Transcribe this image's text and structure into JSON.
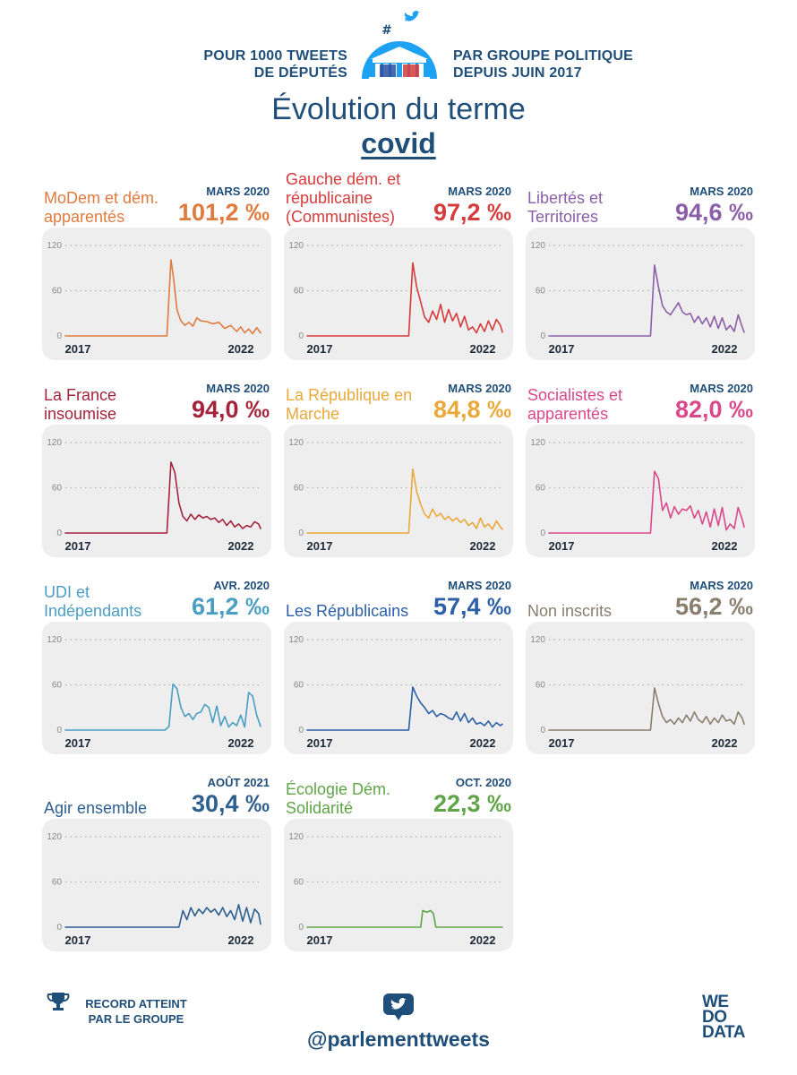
{
  "header": {
    "left_line1": "POUR 1000 TWEETS",
    "left_line2": "DE DÉPUTÉS",
    "right_line1": "PAR GROUPE POLITIQUE",
    "right_line2": "DEPUIS JUIN 2017",
    "title": "Évolution du terme",
    "term": "covid"
  },
  "footer": {
    "record_line1": "RECORD ATTEINT",
    "record_line2": "PAR LE GROUPE",
    "handle": "@parlementtweets",
    "brand_line1": "WE",
    "brand_line2": "DO",
    "brand_line3": "DATA"
  },
  "chart_data": [
    {
      "type": "line",
      "name": "MoDem et dém. apparentés",
      "color": "#e07b3f",
      "record_date": "MARS 2020",
      "record_value": "101,2 ‰",
      "xlabels": [
        "2017",
        "2022"
      ],
      "yticks": [
        0,
        60,
        120
      ],
      "ylim": [
        0,
        120
      ],
      "x_range": [
        2017.45,
        2022.35
      ],
      "x": [
        2017.45,
        2020.0,
        2020.1,
        2020.17,
        2020.25,
        2020.35,
        2020.45,
        2020.55,
        2020.65,
        2020.75,
        2020.85,
        2021.0,
        2021.15,
        2021.3,
        2021.45,
        2021.6,
        2021.75,
        2021.85,
        2021.95,
        2022.05,
        2022.15,
        2022.25,
        2022.35
      ],
      "y": [
        0,
        0,
        101,
        75,
        35,
        20,
        14,
        18,
        13,
        24,
        20,
        19,
        16,
        18,
        10,
        14,
        6,
        12,
        4,
        9,
        3,
        11,
        4
      ]
    },
    {
      "type": "line",
      "name": "Gauche dém. et républicaine (Communistes)",
      "color": "#d63b3b",
      "record_date": "MARS 2020",
      "record_value": "97,2 ‰",
      "xlabels": [
        "2017",
        "2022"
      ],
      "yticks": [
        0,
        60,
        120
      ],
      "ylim": [
        0,
        120
      ],
      "x_range": [
        2017.45,
        2022.35
      ],
      "x": [
        2017.45,
        2020.0,
        2020.1,
        2020.2,
        2020.3,
        2020.4,
        2020.5,
        2020.6,
        2020.7,
        2020.8,
        2020.9,
        2021.0,
        2021.1,
        2021.2,
        2021.3,
        2021.4,
        2021.5,
        2021.6,
        2021.7,
        2021.8,
        2021.9,
        2022.0,
        2022.1,
        2022.2,
        2022.3,
        2022.35
      ],
      "y": [
        0,
        0,
        97,
        65,
        45,
        25,
        18,
        33,
        22,
        42,
        18,
        35,
        20,
        30,
        12,
        26,
        8,
        12,
        4,
        16,
        6,
        20,
        8,
        22,
        14,
        5
      ]
    },
    {
      "type": "line",
      "name": "Libertés et Territoires",
      "color": "#8b5ea8",
      "record_date": "MARS 2020",
      "record_value": "94,6 ‰",
      "xlabels": [
        "2017",
        "2022"
      ],
      "yticks": [
        0,
        60,
        120
      ],
      "ylim": [
        0,
        120
      ],
      "x_range": [
        2017.45,
        2022.35
      ],
      "x": [
        2017.45,
        2020.0,
        2020.1,
        2020.2,
        2020.3,
        2020.4,
        2020.5,
        2020.6,
        2020.7,
        2020.8,
        2020.9,
        2021.0,
        2021.1,
        2021.2,
        2021.3,
        2021.4,
        2021.5,
        2021.6,
        2021.7,
        2021.8,
        2021.9,
        2022.0,
        2022.1,
        2022.2,
        2022.3,
        2022.35
      ],
      "y": [
        0,
        0,
        94,
        65,
        40,
        32,
        28,
        36,
        44,
        32,
        28,
        30,
        18,
        26,
        16,
        24,
        12,
        26,
        10,
        24,
        8,
        14,
        6,
        28,
        12,
        5
      ]
    },
    {
      "type": "line",
      "name": "La France insoumise",
      "color": "#a3243b",
      "record_date": "MARS 2020",
      "record_value": "94,0 ‰",
      "xlabels": [
        "2017",
        "2022"
      ],
      "yticks": [
        0,
        60,
        120
      ],
      "ylim": [
        0,
        120
      ],
      "x_range": [
        2017.45,
        2022.35
      ],
      "x": [
        2017.45,
        2020.0,
        2020.1,
        2020.2,
        2020.3,
        2020.4,
        2020.5,
        2020.6,
        2020.7,
        2020.8,
        2020.9,
        2021.0,
        2021.1,
        2021.2,
        2021.3,
        2021.4,
        2021.5,
        2021.6,
        2021.7,
        2021.8,
        2021.9,
        2022.0,
        2022.1,
        2022.2,
        2022.3,
        2022.35
      ],
      "y": [
        0,
        0,
        94,
        80,
        40,
        22,
        16,
        25,
        18,
        24,
        20,
        22,
        18,
        20,
        14,
        18,
        10,
        16,
        8,
        12,
        6,
        10,
        8,
        15,
        12,
        6
      ]
    },
    {
      "type": "line",
      "name": "La République en Marche",
      "color": "#e9a83a",
      "record_date": "MARS 2020",
      "record_value": "84,8 ‰",
      "xlabels": [
        "2017",
        "2022"
      ],
      "yticks": [
        0,
        60,
        120
      ],
      "ylim": [
        0,
        120
      ],
      "x_range": [
        2017.45,
        2022.35
      ],
      "x": [
        2017.45,
        2020.0,
        2020.1,
        2020.2,
        2020.3,
        2020.4,
        2020.5,
        2020.6,
        2020.7,
        2020.8,
        2020.9,
        2021.0,
        2021.1,
        2021.2,
        2021.3,
        2021.4,
        2021.5,
        2021.6,
        2021.7,
        2021.8,
        2021.9,
        2022.0,
        2022.1,
        2022.2,
        2022.3,
        2022.35
      ],
      "y": [
        0,
        0,
        85,
        55,
        38,
        25,
        20,
        32,
        22,
        26,
        18,
        22,
        16,
        20,
        14,
        18,
        10,
        14,
        6,
        20,
        8,
        12,
        5,
        16,
        8,
        5
      ]
    },
    {
      "type": "line",
      "name": "Socialistes et apparentés",
      "color": "#d9488a",
      "record_date": "MARS 2020",
      "record_value": "82,0 ‰",
      "xlabels": [
        "2017",
        "2022"
      ],
      "yticks": [
        0,
        60,
        120
      ],
      "ylim": [
        0,
        120
      ],
      "x_range": [
        2017.45,
        2022.35
      ],
      "x": [
        2017.45,
        2020.0,
        2020.1,
        2020.2,
        2020.3,
        2020.4,
        2020.5,
        2020.6,
        2020.7,
        2020.8,
        2020.9,
        2021.0,
        2021.1,
        2021.2,
        2021.3,
        2021.4,
        2021.5,
        2021.6,
        2021.7,
        2021.8,
        2021.9,
        2022.0,
        2022.1,
        2022.2,
        2022.3,
        2022.35
      ],
      "y": [
        0,
        0,
        82,
        72,
        30,
        40,
        20,
        35,
        25,
        32,
        30,
        36,
        20,
        30,
        12,
        28,
        8,
        32,
        10,
        34,
        4,
        12,
        6,
        34,
        18,
        8
      ]
    },
    {
      "type": "line",
      "name": "UDI et Indépendants",
      "color": "#4a9ec4",
      "record_date": "AVR. 2020",
      "record_value": "61,2 ‰",
      "xlabels": [
        "2017",
        "2022"
      ],
      "yticks": [
        0,
        60,
        120
      ],
      "ylim": [
        0,
        120
      ],
      "x_range": [
        2017.45,
        2022.35
      ],
      "x": [
        2017.45,
        2019.95,
        2020.05,
        2020.15,
        2020.25,
        2020.35,
        2020.45,
        2020.55,
        2020.65,
        2020.75,
        2020.85,
        2020.95,
        2021.05,
        2021.15,
        2021.25,
        2021.35,
        2021.45,
        2021.55,
        2021.65,
        2021.75,
        2021.85,
        2021.95,
        2022.05,
        2022.15,
        2022.25,
        2022.35
      ],
      "y": [
        0,
        0,
        5,
        61,
        55,
        30,
        18,
        22,
        14,
        22,
        24,
        34,
        30,
        10,
        32,
        6,
        18,
        4,
        10,
        6,
        20,
        4,
        50,
        45,
        20,
        5
      ]
    },
    {
      "type": "line",
      "name": "Les Républicains",
      "color": "#2b5fa8",
      "record_date": "MARS 2020",
      "record_value": "57,4 ‰",
      "xlabels": [
        "2017",
        "2022"
      ],
      "yticks": [
        0,
        60,
        120
      ],
      "ylim": [
        0,
        120
      ],
      "x_range": [
        2017.45,
        2022.35
      ],
      "x": [
        2017.45,
        2020.0,
        2020.1,
        2020.2,
        2020.3,
        2020.4,
        2020.5,
        2020.6,
        2020.7,
        2020.8,
        2020.9,
        2021.0,
        2021.1,
        2021.2,
        2021.3,
        2021.4,
        2021.5,
        2021.6,
        2021.7,
        2021.8,
        2021.9,
        2022.0,
        2022.1,
        2022.2,
        2022.3,
        2022.35
      ],
      "y": [
        0,
        0,
        57,
        45,
        36,
        30,
        22,
        26,
        18,
        22,
        20,
        16,
        14,
        24,
        12,
        22,
        10,
        16,
        8,
        10,
        6,
        12,
        4,
        10,
        6,
        8
      ]
    },
    {
      "type": "line",
      "name": "Non inscrits",
      "color": "#8a7e6e",
      "record_date": "MARS 2020",
      "record_value": "56,2 ‰",
      "xlabels": [
        "2017",
        "2022"
      ],
      "yticks": [
        0,
        60,
        120
      ],
      "ylim": [
        0,
        120
      ],
      "x_range": [
        2017.45,
        2022.35
      ],
      "x": [
        2017.45,
        2020.0,
        2020.1,
        2020.2,
        2020.3,
        2020.4,
        2020.5,
        2020.6,
        2020.7,
        2020.8,
        2020.9,
        2021.0,
        2021.1,
        2021.2,
        2021.3,
        2021.4,
        2021.5,
        2021.6,
        2021.7,
        2021.8,
        2021.9,
        2022.0,
        2022.1,
        2022.2,
        2022.3,
        2022.35
      ],
      "y": [
        0,
        0,
        56,
        35,
        18,
        10,
        14,
        8,
        16,
        10,
        20,
        12,
        24,
        14,
        10,
        18,
        8,
        16,
        10,
        20,
        12,
        14,
        8,
        24,
        16,
        8
      ]
    },
    {
      "type": "line",
      "name": "Agir ensemble",
      "color": "#2d5f8f",
      "record_date": "AOÛT 2021",
      "record_value": "30,4 ‰",
      "xlabels": [
        "2017",
        "2022"
      ],
      "yticks": [
        0,
        60,
        120
      ],
      "ylim": [
        0,
        120
      ],
      "x_range": [
        2017.45,
        2022.35
      ],
      "x": [
        2017.45,
        2020.3,
        2020.4,
        2020.5,
        2020.6,
        2020.7,
        2020.8,
        2020.9,
        2021.0,
        2021.1,
        2021.2,
        2021.3,
        2021.4,
        2021.5,
        2021.6,
        2021.7,
        2021.8,
        2021.9,
        2022.0,
        2022.1,
        2022.2,
        2022.3,
        2022.35
      ],
      "y": [
        0,
        0,
        22,
        10,
        26,
        15,
        24,
        18,
        26,
        20,
        24,
        16,
        26,
        14,
        22,
        10,
        30,
        8,
        26,
        6,
        24,
        18,
        4
      ]
    },
    {
      "type": "line",
      "name": "Écologie Dém. Solidarité",
      "color": "#5fa548",
      "record_date": "OCT. 2020",
      "record_value": "22,3 ‰",
      "xlabels": [
        "2017",
        "2022"
      ],
      "yticks": [
        0,
        60,
        120
      ],
      "ylim": [
        0,
        120
      ],
      "x_range": [
        2017.45,
        2022.35
      ],
      "x": [
        2017.45,
        2020.3,
        2020.35,
        2020.45,
        2020.55,
        2020.62,
        2020.68,
        2022.35
      ],
      "y": [
        0,
        0,
        22,
        20,
        22,
        18,
        0,
        0
      ]
    }
  ]
}
